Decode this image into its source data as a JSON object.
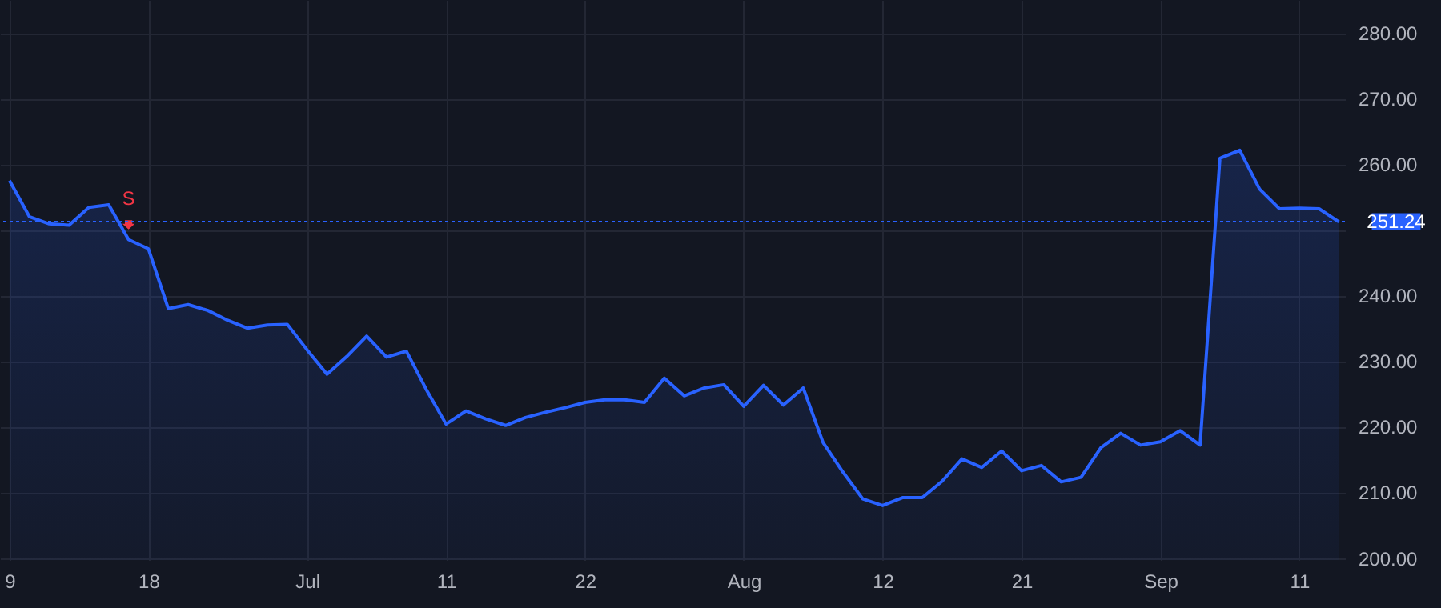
{
  "chart_data": {
    "type": "area",
    "categories": [
      "9",
      null,
      null,
      null,
      null,
      null,
      null,
      "18",
      null,
      null,
      null,
      null,
      null,
      null,
      null,
      "Jul",
      null,
      null,
      null,
      null,
      null,
      null,
      "11",
      null,
      null,
      null,
      null,
      null,
      null,
      "22",
      null,
      null,
      null,
      null,
      null,
      null,
      null,
      "Aug",
      null,
      null,
      null,
      null,
      null,
      null,
      "12",
      null,
      null,
      null,
      null,
      null,
      null,
      "21",
      null,
      null,
      null,
      null,
      null,
      null,
      "Sep",
      null,
      null,
      null,
      null,
      null,
      null,
      "11",
      null,
      null
    ],
    "series": [
      {
        "color": "#2962ff",
        "values": [
          257.5,
          252.0,
          250.9,
          250.7,
          253.4,
          253.8,
          248.5,
          247.1,
          238.0,
          238.6,
          237.7,
          236.2,
          235.0,
          235.5,
          235.6,
          231.7,
          228.0,
          230.7,
          233.8,
          230.6,
          231.5,
          225.7,
          220.4,
          222.4,
          221.2,
          220.2,
          221.4,
          222.2,
          222.9,
          223.7,
          224.1,
          224.1,
          223.7,
          227.4,
          224.7,
          225.9,
          226.4,
          223.1,
          226.3,
          223.3,
          225.9,
          217.6,
          213.1,
          209.0,
          208.0,
          209.2,
          209.2,
          211.7,
          215.1,
          213.8,
          216.3,
          213.3,
          214.1,
          211.6,
          212.3,
          216.8,
          219.0,
          217.2,
          217.7,
          219.4,
          217.2,
          260.9,
          262.1,
          256.2,
          253.2,
          253.3,
          253.2,
          251.2
        ]
      },
      {
        "type": "scatter",
        "name": "S",
        "color": "#f23645",
        "marker": "triangle",
        "values": [
          null,
          null,
          null,
          null,
          null,
          null,
          250.9,
          null,
          null,
          null,
          null,
          null,
          null,
          null,
          null,
          null,
          null,
          null,
          null,
          null,
          null,
          null,
          null,
          null,
          null,
          null,
          null,
          null,
          null,
          null,
          null,
          null,
          null,
          null,
          null,
          null,
          null,
          null,
          null,
          null,
          null,
          null,
          null,
          null,
          null,
          null,
          null,
          null,
          null,
          null,
          null,
          null,
          null,
          null,
          null,
          null,
          null,
          null,
          null,
          null,
          null,
          null,
          null,
          null,
          null,
          null,
          null,
          null
        ]
      }
    ],
    "ylim": [
      199.7,
      285
    ],
    "yticks": [
      {
        "value": 200,
        "label": "200.00"
      },
      {
        "value": 210,
        "label": "210.00"
      },
      {
        "value": 220,
        "label": "220.00"
      },
      {
        "value": 230,
        "label": "230.00"
      },
      {
        "value": 240,
        "label": "240.00"
      },
      {
        "value": 250,
        "label": null
      },
      {
        "value": 260,
        "label": "260.00"
      },
      {
        "value": 270,
        "label": "270.00"
      },
      {
        "value": 280,
        "label": "280.00"
      }
    ],
    "ref_lines": [
      {
        "axis": "y",
        "value": 251.24,
        "label": "251.24",
        "color": "#2962ff",
        "line_style": "dotted"
      }
    ],
    "grid": true
  }
}
